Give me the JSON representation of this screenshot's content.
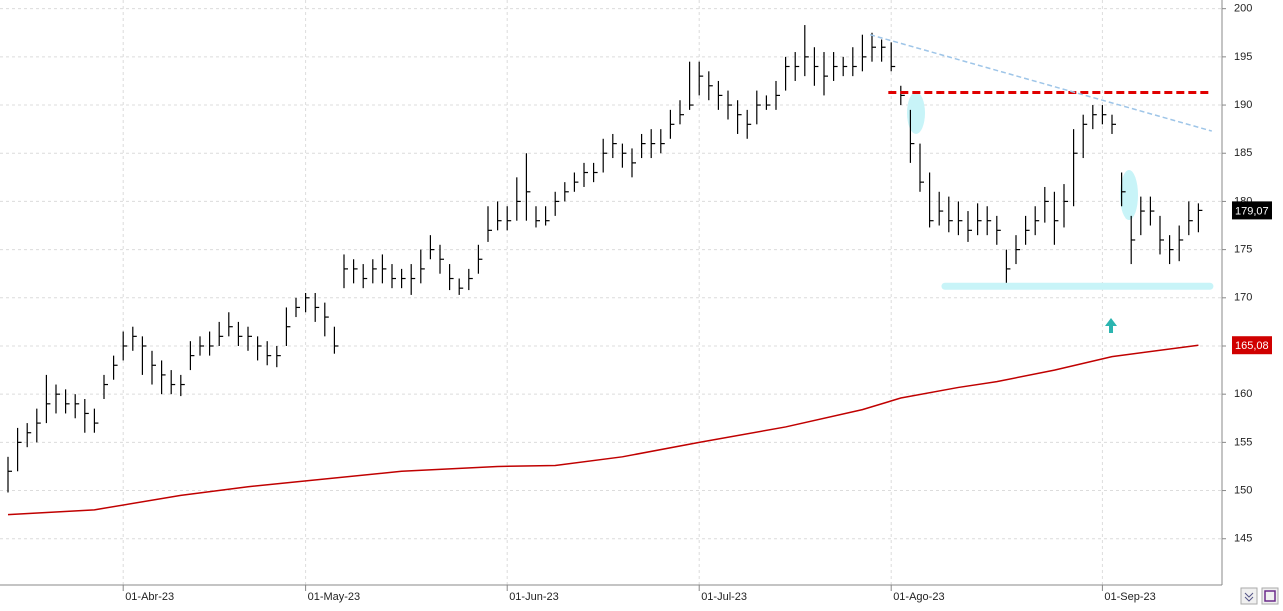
{
  "chart_data": {
    "type": "ohlc",
    "categories": [
      null,
      null,
      null,
      null,
      null,
      null,
      null,
      null,
      null,
      null,
      null,
      null,
      "01-Abr-23",
      null,
      null,
      null,
      null,
      null,
      null,
      null,
      null,
      null,
      null,
      null,
      null,
      null,
      null,
      null,
      null,
      null,
      null,
      "01-May-23",
      null,
      null,
      null,
      null,
      null,
      null,
      null,
      null,
      null,
      null,
      null,
      null,
      null,
      null,
      null,
      null,
      null,
      null,
      null,
      null,
      "01-Jun-23",
      null,
      null,
      null,
      null,
      null,
      null,
      null,
      null,
      null,
      null,
      null,
      null,
      null,
      null,
      null,
      null,
      null,
      null,
      null,
      "01-Jul-23",
      null,
      null,
      null,
      null,
      null,
      null,
      null,
      null,
      null,
      null,
      null,
      null,
      null,
      null,
      null,
      null,
      null,
      null,
      null,
      "01-Ago-23",
      null,
      null,
      null,
      null,
      null,
      null,
      null,
      null,
      null,
      null,
      null,
      null,
      null,
      null,
      null,
      null,
      null,
      null,
      null,
      null,
      null,
      "01-Sep-23",
      null,
      null,
      null,
      null,
      null,
      null,
      null,
      null,
      null,
      null
    ],
    "high": [
      153.5,
      156.5,
      157,
      158.5,
      162,
      161,
      160.5,
      160,
      159.5,
      158.5,
      162,
      164,
      166.5,
      167,
      166,
      164.5,
      163.5,
      162.5,
      162,
      165.5,
      166,
      166.5,
      167.5,
      168.5,
      167.5,
      167,
      166,
      165.5,
      165,
      169,
      170,
      170.5,
      170.5,
      169.5,
      167,
      174.5,
      174,
      173.5,
      174,
      174.5,
      173.5,
      173,
      173.5,
      175,
      176.5,
      175.5,
      173.5,
      172,
      173,
      175.5,
      179.5,
      180,
      179.5,
      182.5,
      185,
      179.5,
      179.5,
      181,
      182,
      183,
      184,
      184,
      186.5,
      187,
      186,
      185.5,
      187,
      187.5,
      187.5,
      189.5,
      190.5,
      194.5,
      194.5,
      193.5,
      192.5,
      191.5,
      190.5,
      189.5,
      191.5,
      191,
      192.5,
      195,
      195.5,
      198.3,
      196,
      195.5,
      195.5,
      195,
      196,
      197.3,
      197.5,
      196.8,
      196.5,
      192,
      189.5,
      186,
      183,
      181,
      180.5,
      180,
      179,
      179.8,
      179.5,
      178.5,
      175,
      176.5,
      178.5,
      179.5,
      181.5,
      181,
      181.8,
      187.5,
      189,
      190,
      190,
      189,
      183,
      178.5,
      180.5,
      180.5,
      178.5,
      176.5,
      177.5,
      180,
      179.8
    ],
    "low": [
      149.8,
      152,
      154.5,
      155,
      157,
      158,
      158,
      157.5,
      156,
      156,
      159.5,
      161.5,
      163.5,
      164.5,
      162,
      161,
      160,
      160,
      159.8,
      162.5,
      164,
      164,
      165,
      166,
      165,
      164.5,
      163.5,
      163,
      162.8,
      165,
      168,
      168.5,
      167.5,
      166,
      164.2,
      171,
      171.5,
      171,
      171.5,
      171.5,
      171,
      171,
      170.3,
      171.5,
      174,
      172.5,
      170.8,
      170.3,
      170.8,
      172.5,
      175.8,
      177,
      177,
      178,
      178,
      177.3,
      177.5,
      178.5,
      180,
      181,
      181.5,
      182,
      183,
      184.5,
      183.5,
      182.5,
      184.5,
      184.5,
      185,
      186.5,
      188,
      189.5,
      191,
      190.5,
      189.5,
      188.5,
      187,
      186.5,
      188,
      189.5,
      189.5,
      191.5,
      192.5,
      193,
      192,
      191,
      192.5,
      193,
      193,
      193.5,
      194.5,
      194.5,
      193.5,
      190,
      184,
      181,
      177.3,
      177.5,
      176.8,
      176.5,
      175.8,
      176.5,
      176.5,
      175.5,
      171.5,
      173.5,
      175.5,
      176.5,
      177.8,
      175.5,
      177.3,
      179.5,
      184.5,
      187.5,
      188,
      187,
      179.5,
      173.5,
      176.5,
      177.5,
      174.5,
      173.5,
      173.8,
      176.5,
      176.8
    ],
    "close": [
      152,
      155,
      156,
      157,
      159,
      160,
      159,
      159,
      158,
      157,
      161,
      163,
      165,
      166,
      165,
      163,
      162,
      161,
      161,
      164,
      165,
      165,
      166,
      167,
      166,
      166,
      165,
      164,
      164,
      167,
      169,
      170,
      169,
      168,
      165,
      173,
      173,
      172,
      173,
      173,
      172,
      172,
      172,
      173,
      175,
      174,
      172,
      171,
      172,
      174,
      177,
      178,
      178,
      180,
      181,
      178,
      178,
      180,
      181,
      182,
      183,
      183,
      185,
      186,
      185,
      184,
      186,
      186,
      186,
      188,
      189,
      190,
      193,
      192,
      191,
      190,
      189,
      188,
      190,
      190,
      191,
      194,
      194,
      195,
      194,
      193,
      194,
      194,
      194,
      195,
      196,
      196,
      194,
      191,
      186,
      182,
      178,
      179,
      178,
      178,
      177,
      178,
      178,
      177,
      173,
      175,
      177,
      178,
      180,
      178,
      180,
      185,
      188,
      189,
      189,
      188,
      181,
      176,
      179,
      179,
      176,
      175,
      176,
      178,
      179.07
    ],
    "color": "#000000",
    "moving_average": {
      "color": "#c00000",
      "x": [
        0,
        9,
        18,
        25,
        30,
        41,
        51,
        57,
        64,
        72,
        81,
        89,
        93,
        99,
        103,
        109,
        115,
        124
      ],
      "values": [
        147.5,
        148.0,
        149.5,
        150.4,
        150.9,
        152.0,
        152.5,
        152.6,
        153.5,
        155.0,
        156.6,
        158.4,
        159.6,
        160.7,
        161.3,
        162.5,
        163.9,
        165.08
      ]
    },
    "trendline": {
      "x": [
        89.8,
        125.4
      ],
      "y": [
        197.3,
        187.3
      ],
      "color": "#9ec5e8"
    },
    "resistance": {
      "value": 191.3,
      "x": [
        91.7,
        125.2
      ],
      "color": "#e00000"
    },
    "support": {
      "value": 171.2,
      "x": [
        97.6,
        125.2
      ],
      "color": "#c8f4f8"
    },
    "price_tags": [
      {
        "value": 179.07,
        "label": "179,07",
        "color": "#000000"
      },
      {
        "value": 165.08,
        "label": "165,08",
        "color": "#d00000"
      }
    ],
    "ylim": [
      140.2,
      200.9
    ],
    "yticks": [
      145,
      150,
      155,
      160,
      165,
      170,
      175,
      180,
      185,
      190,
      195,
      200
    ],
    "grid": true
  }
}
